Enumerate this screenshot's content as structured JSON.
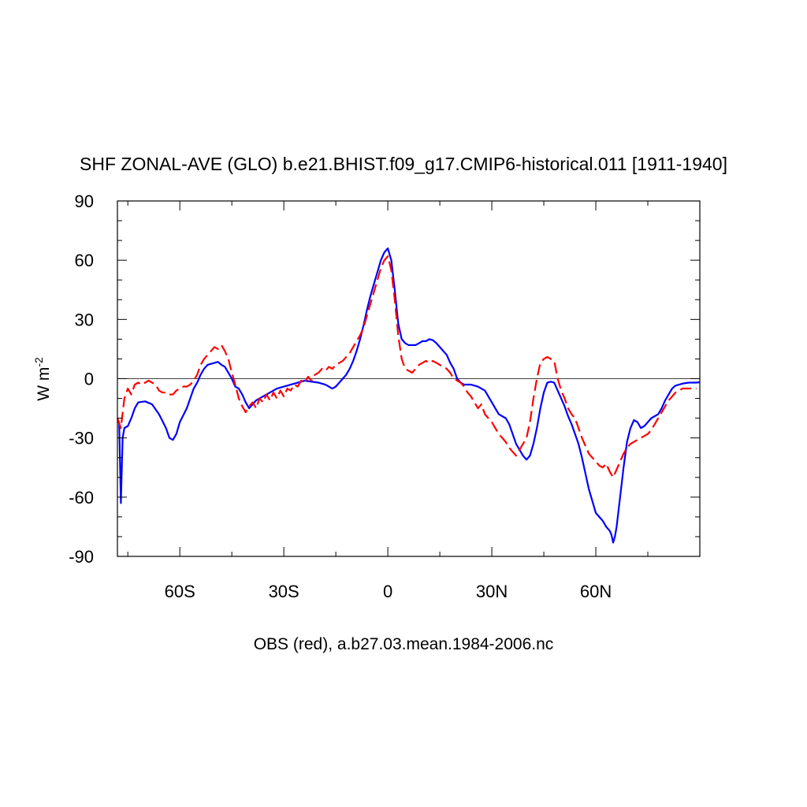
{
  "chart_data": {
    "type": "line",
    "title": "SHF ZONAL-AVE (GLO) b.e21.BHIST.f09_g17.CMIP6-historical.011 [1911-1940]",
    "xlabel": "",
    "ylabel": "W m",
    "ylabel_superscript": "-2",
    "caption": "OBS (red), a.b27.03.mean.1984-2006.nc",
    "xlim": [
      -78,
      90
    ],
    "ylim": [
      -90,
      90
    ],
    "grid": false,
    "zero_line": true,
    "x_ticks": [
      {
        "value": -60,
        "label": "60S"
      },
      {
        "value": -30,
        "label": "30S"
      },
      {
        "value": 0,
        "label": "0"
      },
      {
        "value": 30,
        "label": "30N"
      },
      {
        "value": 60,
        "label": "60N"
      }
    ],
    "y_ticks": [
      {
        "value": 90,
        "label": "90"
      },
      {
        "value": 60,
        "label": "60"
      },
      {
        "value": 30,
        "label": "30"
      },
      {
        "value": 0,
        "label": "0"
      },
      {
        "value": -30,
        "label": "-30"
      },
      {
        "value": -60,
        "label": "-60"
      },
      {
        "value": -90,
        "label": "-90"
      }
    ],
    "series": [
      {
        "style": "solid",
        "color": "#0000ff",
        "points": [
          [
            -78,
            -22
          ],
          [
            -77.5,
            -22
          ],
          [
            -77,
            -63
          ],
          [
            -76.5,
            -30
          ],
          [
            -76,
            -25
          ],
          [
            -75,
            -24
          ],
          [
            -74,
            -20
          ],
          [
            -73,
            -15
          ],
          [
            -72,
            -12
          ],
          [
            -70,
            -11.5
          ],
          [
            -68,
            -13
          ],
          [
            -66,
            -18
          ],
          [
            -64,
            -25
          ],
          [
            -63,
            -30
          ],
          [
            -62,
            -31
          ],
          [
            -61,
            -28
          ],
          [
            -60,
            -22
          ],
          [
            -58,
            -15
          ],
          [
            -57,
            -10
          ],
          [
            -56,
            -5
          ],
          [
            -55,
            -2
          ],
          [
            -54,
            2
          ],
          [
            -53,
            5
          ],
          [
            -52,
            7
          ],
          [
            -51,
            7.5
          ],
          [
            -50,
            8
          ],
          [
            -49,
            8.5
          ],
          [
            -48,
            7
          ],
          [
            -47,
            6
          ],
          [
            -46,
            3
          ],
          [
            -45,
            0
          ],
          [
            -44,
            -4
          ],
          [
            -43,
            -5
          ],
          [
            -42,
            -8
          ],
          [
            -41,
            -12
          ],
          [
            -40,
            -15
          ],
          [
            -39,
            -13
          ],
          [
            -38,
            -11
          ],
          [
            -36,
            -9
          ],
          [
            -34,
            -7
          ],
          [
            -32,
            -5
          ],
          [
            -30,
            -4
          ],
          [
            -28,
            -3
          ],
          [
            -26,
            -2
          ],
          [
            -24,
            -1
          ],
          [
            -22,
            -1.5
          ],
          [
            -20,
            -2
          ],
          [
            -18,
            -3
          ],
          [
            -16,
            -5
          ],
          [
            -15,
            -4
          ],
          [
            -14,
            -2
          ],
          [
            -13,
            0
          ],
          [
            -12,
            2
          ],
          [
            -11,
            5
          ],
          [
            -10,
            9
          ],
          [
            -9,
            14
          ],
          [
            -8,
            20
          ],
          [
            -7,
            27
          ],
          [
            -6,
            35
          ],
          [
            -5,
            42
          ],
          [
            -4,
            48
          ],
          [
            -3,
            54
          ],
          [
            -2,
            60
          ],
          [
            -1,
            64
          ],
          [
            0,
            66
          ],
          [
            1,
            60
          ],
          [
            2,
            45
          ],
          [
            3,
            28
          ],
          [
            4,
            20
          ],
          [
            5,
            18
          ],
          [
            6,
            17
          ],
          [
            7,
            17
          ],
          [
            8,
            17
          ],
          [
            9,
            18
          ],
          [
            10,
            19
          ],
          [
            11,
            19
          ],
          [
            12,
            20
          ],
          [
            13,
            19.5
          ],
          [
            14,
            18
          ],
          [
            15,
            16
          ],
          [
            16,
            14
          ],
          [
            17,
            12
          ],
          [
            18,
            8
          ],
          [
            19,
            5
          ],
          [
            20,
            0
          ],
          [
            21,
            -2
          ],
          [
            22,
            -3
          ],
          [
            24,
            -3
          ],
          [
            26,
            -4
          ],
          [
            28,
            -6
          ],
          [
            29,
            -9
          ],
          [
            30,
            -12
          ],
          [
            31,
            -15
          ],
          [
            32,
            -18
          ],
          [
            33,
            -19
          ],
          [
            34,
            -20
          ],
          [
            35,
            -23
          ],
          [
            36,
            -28
          ],
          [
            37,
            -33
          ],
          [
            38,
            -36
          ],
          [
            39,
            -39
          ],
          [
            40,
            -41
          ],
          [
            41,
            -39
          ],
          [
            42,
            -33
          ],
          [
            43,
            -25
          ],
          [
            44,
            -15
          ],
          [
            45,
            -7
          ],
          [
            46,
            -2
          ],
          [
            47,
            -1.5
          ],
          [
            48,
            -2
          ],
          [
            49,
            -6
          ],
          [
            50,
            -10
          ],
          [
            51,
            -14
          ],
          [
            52,
            -19
          ],
          [
            53,
            -23
          ],
          [
            54,
            -28
          ],
          [
            55,
            -33
          ],
          [
            56,
            -40
          ],
          [
            57,
            -48
          ],
          [
            58,
            -56
          ],
          [
            59,
            -62
          ],
          [
            60,
            -68
          ],
          [
            61,
            -70
          ],
          [
            62,
            -72
          ],
          [
            63,
            -75
          ],
          [
            64,
            -77
          ],
          [
            64.5,
            -79
          ],
          [
            65,
            -83
          ],
          [
            65.5,
            -80
          ],
          [
            66,
            -75
          ],
          [
            67,
            -60
          ],
          [
            68,
            -45
          ],
          [
            69,
            -32
          ],
          [
            70,
            -25
          ],
          [
            71,
            -21
          ],
          [
            72,
            -22
          ],
          [
            73,
            -25
          ],
          [
            74,
            -24
          ],
          [
            75,
            -22
          ],
          [
            76,
            -20
          ],
          [
            77,
            -19
          ],
          [
            78,
            -18
          ],
          [
            79,
            -15
          ],
          [
            80,
            -11
          ],
          [
            81,
            -8
          ],
          [
            82,
            -5
          ],
          [
            83,
            -3.5
          ],
          [
            84,
            -3
          ],
          [
            85,
            -2.5
          ],
          [
            86,
            -2.2
          ],
          [
            87,
            -2
          ],
          [
            88,
            -2
          ],
          [
            89,
            -2
          ],
          [
            90,
            -1.8
          ]
        ]
      },
      {
        "style": "dashed",
        "color": "#ff0000",
        "points": [
          [
            -78,
            -20
          ],
          [
            -77,
            -25
          ],
          [
            -76,
            -10
          ],
          [
            -75,
            -5
          ],
          [
            -74,
            -8
          ],
          [
            -73,
            -3
          ],
          [
            -72,
            -2
          ],
          [
            -71,
            -3
          ],
          [
            -70,
            -2
          ],
          [
            -69,
            -1
          ],
          [
            -68,
            -2
          ],
          [
            -67,
            -3
          ],
          [
            -66,
            -6
          ],
          [
            -65,
            -7
          ],
          [
            -64,
            -7
          ],
          [
            -63,
            -8
          ],
          [
            -62,
            -8
          ],
          [
            -61,
            -6
          ],
          [
            -60,
            -5
          ],
          [
            -59,
            -4
          ],
          [
            -58,
            -4
          ],
          [
            -57,
            -3
          ],
          [
            -56,
            -1
          ],
          [
            -55,
            2
          ],
          [
            -54,
            7
          ],
          [
            -53,
            10
          ],
          [
            -52,
            12
          ],
          [
            -51,
            14
          ],
          [
            -50,
            16
          ],
          [
            -49,
            15
          ],
          [
            -48,
            17
          ],
          [
            -47,
            14
          ],
          [
            -46,
            10
          ],
          [
            -45,
            3
          ],
          [
            -44,
            -3
          ],
          [
            -43,
            -10
          ],
          [
            -42,
            -14
          ],
          [
            -41,
            -17
          ],
          [
            -40,
            -14
          ],
          [
            -39,
            -12
          ],
          [
            -38,
            -15
          ],
          [
            -37,
            -10
          ],
          [
            -36,
            -12
          ],
          [
            -35,
            -8
          ],
          [
            -34,
            -11
          ],
          [
            -33,
            -7
          ],
          [
            -32,
            -10
          ],
          [
            -31,
            -6
          ],
          [
            -30,
            -9
          ],
          [
            -29,
            -5
          ],
          [
            -28,
            -6
          ],
          [
            -27,
            -3
          ],
          [
            -26,
            -4
          ],
          [
            -25,
            -1
          ],
          [
            -24,
            -2
          ],
          [
            -23,
            1
          ],
          [
            -22,
            -1
          ],
          [
            -21,
            2
          ],
          [
            -20,
            3
          ],
          [
            -19,
            5
          ],
          [
            -18,
            4
          ],
          [
            -17,
            6
          ],
          [
            -16,
            5
          ],
          [
            -15,
            7
          ],
          [
            -14,
            8
          ],
          [
            -13,
            9
          ],
          [
            -12,
            11
          ],
          [
            -11,
            13
          ],
          [
            -10,
            16
          ],
          [
            -9,
            19
          ],
          [
            -8,
            22
          ],
          [
            -7,
            26
          ],
          [
            -6,
            32
          ],
          [
            -5,
            38
          ],
          [
            -4,
            44
          ],
          [
            -3,
            50
          ],
          [
            -2,
            56
          ],
          [
            -1,
            60
          ],
          [
            0,
            62
          ],
          [
            1,
            55
          ],
          [
            2,
            40
          ],
          [
            3,
            22
          ],
          [
            4,
            10
          ],
          [
            5,
            5
          ],
          [
            6,
            4
          ],
          [
            7,
            3
          ],
          [
            8,
            5
          ],
          [
            9,
            7
          ],
          [
            10,
            8
          ],
          [
            11,
            9
          ],
          [
            12,
            8
          ],
          [
            13,
            9
          ],
          [
            14,
            8
          ],
          [
            15,
            7
          ],
          [
            16,
            6
          ],
          [
            17,
            5
          ],
          [
            18,
            3
          ],
          [
            19,
            0
          ],
          [
            20,
            -1
          ],
          [
            21,
            -2
          ],
          [
            22,
            -4
          ],
          [
            23,
            -7
          ],
          [
            24,
            -9
          ],
          [
            25,
            -12
          ],
          [
            26,
            -15
          ],
          [
            27,
            -13
          ],
          [
            28,
            -18
          ],
          [
            29,
            -20
          ],
          [
            30,
            -22
          ],
          [
            31,
            -25
          ],
          [
            32,
            -28
          ],
          [
            33,
            -30
          ],
          [
            34,
            -32
          ],
          [
            35,
            -35
          ],
          [
            36,
            -37
          ],
          [
            37,
            -39
          ],
          [
            38,
            -36
          ],
          [
            39,
            -33
          ],
          [
            40,
            -30
          ],
          [
            41,
            -22
          ],
          [
            42,
            -10
          ],
          [
            43,
            0
          ],
          [
            44,
            8
          ],
          [
            45,
            10
          ],
          [
            46,
            11
          ],
          [
            47,
            10
          ],
          [
            48,
            9
          ],
          [
            49,
            0
          ],
          [
            50,
            -6
          ],
          [
            51,
            -10
          ],
          [
            52,
            -15
          ],
          [
            53,
            -18
          ],
          [
            54,
            -20
          ],
          [
            55,
            -25
          ],
          [
            56,
            -30
          ],
          [
            57,
            -34
          ],
          [
            58,
            -38
          ],
          [
            59,
            -40
          ],
          [
            60,
            -42
          ],
          [
            61,
            -44
          ],
          [
            62,
            -45
          ],
          [
            63,
            -43
          ],
          [
            64,
            -47
          ],
          [
            65,
            -50
          ],
          [
            66,
            -46
          ],
          [
            67,
            -42
          ],
          [
            68,
            -38
          ],
          [
            69,
            -35
          ],
          [
            70,
            -33
          ],
          [
            71,
            -32
          ],
          [
            72,
            -31
          ],
          [
            73,
            -30
          ],
          [
            74,
            -29
          ],
          [
            75,
            -28
          ],
          [
            76,
            -26
          ],
          [
            77,
            -23
          ],
          [
            78,
            -20
          ],
          [
            79,
            -17
          ],
          [
            80,
            -14
          ],
          [
            81,
            -11
          ],
          [
            82,
            -9
          ],
          [
            83,
            -7
          ],
          [
            84,
            -6
          ],
          [
            85,
            -5
          ],
          [
            86,
            -5
          ],
          [
            87,
            -5
          ],
          [
            88,
            -5
          ],
          [
            89,
            -5
          ]
        ]
      }
    ]
  }
}
